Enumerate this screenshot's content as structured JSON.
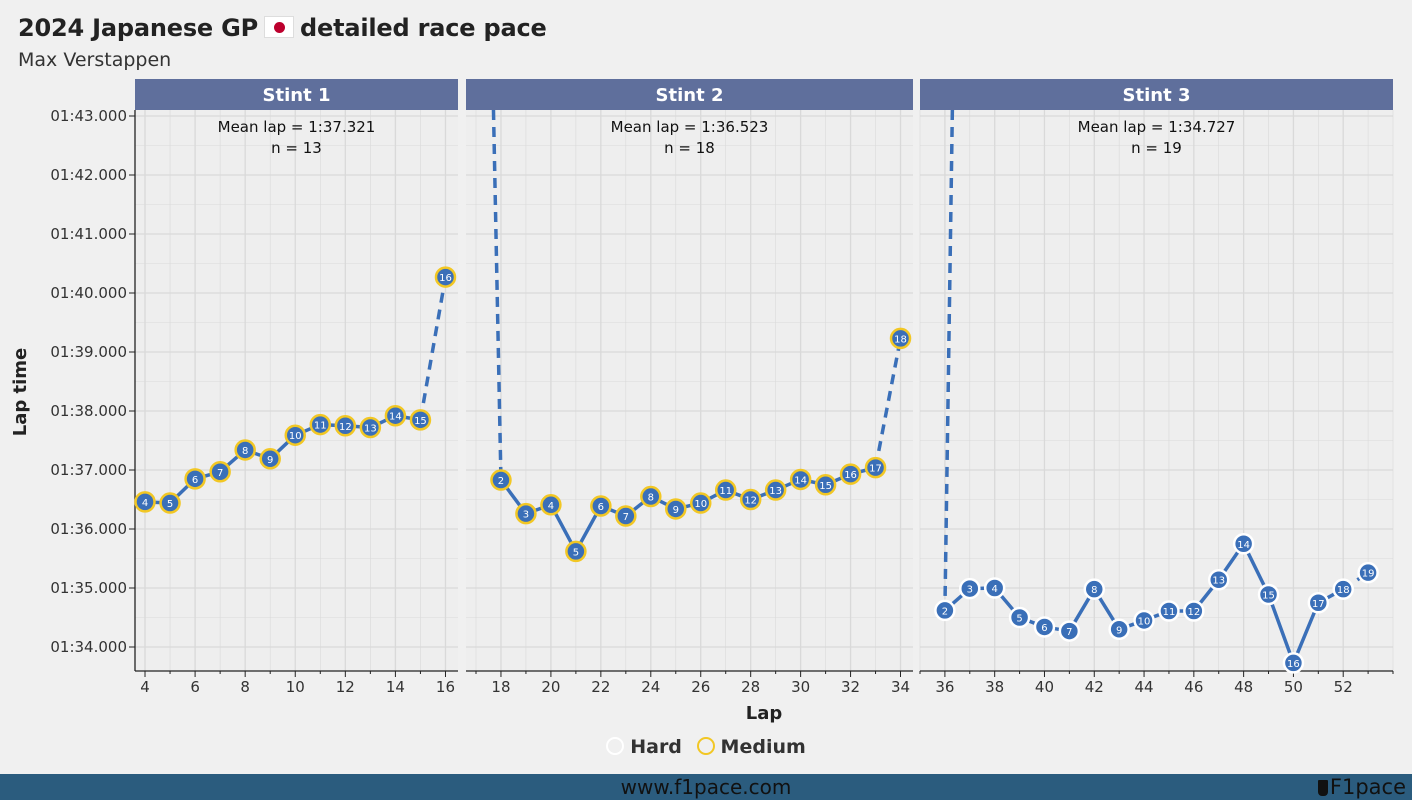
{
  "header": {
    "title_main": "2024 Japanese GP",
    "title_rest": "detailed race pace",
    "subtitle": "Max Verstappen"
  },
  "colors": {
    "line": "#3a6fb8",
    "marker_fill": "#3a6fb8",
    "hard": "#ffffff",
    "medium": "#f2c724",
    "strip": "#5f6f9c",
    "panel_bg": "#eeeeee",
    "grid": "#d9d9d9",
    "footer": "#2b5c7e",
    "flag_red": "#bc002d"
  },
  "legend": {
    "items": [
      {
        "label": "Hard",
        "color": "#ffffff"
      },
      {
        "label": "Medium",
        "color": "#f2c724"
      }
    ]
  },
  "footer": {
    "url": "www.f1pace.com",
    "brand": "F1pace"
  },
  "chart_data": {
    "type": "line",
    "xlabel": "Lap",
    "ylabel": "Lap time",
    "ylim": [
      93.7,
      103.0
    ],
    "yticks": [
      94,
      95,
      96,
      97,
      98,
      99,
      100,
      101,
      102,
      103
    ],
    "ytick_labels": [
      "01:34.000",
      "01:35.000",
      "01:36.000",
      "01:37.000",
      "01:38.000",
      "01:39.000",
      "01:40.000",
      "01:41.000",
      "01:42.000",
      "01:43.000"
    ],
    "grid": true,
    "legend_position": "bottom",
    "panels": [
      {
        "name": "Stint 1",
        "mean_label": "Mean lap = 1:37.321",
        "n_label": "n = 13",
        "xlim": [
          3.6,
          16.5
        ],
        "xticks": [
          4,
          6,
          8,
          10,
          12,
          14,
          16
        ],
        "compound": "Medium",
        "pre_lap": null,
        "points": [
          {
            "lap": 4,
            "stint_lap": 4,
            "time": 96.46
          },
          {
            "lap": 5,
            "stint_lap": 5,
            "time": 96.44
          },
          {
            "lap": 6,
            "stint_lap": 6,
            "time": 96.85
          },
          {
            "lap": 7,
            "stint_lap": 7,
            "time": 96.97
          },
          {
            "lap": 8,
            "stint_lap": 8,
            "time": 97.34
          },
          {
            "lap": 9,
            "stint_lap": 9,
            "time": 97.19
          },
          {
            "lap": 10,
            "stint_lap": 10,
            "time": 97.59
          },
          {
            "lap": 11,
            "stint_lap": 11,
            "time": 97.77
          },
          {
            "lap": 12,
            "stint_lap": 12,
            "time": 97.75
          },
          {
            "lap": 13,
            "stint_lap": 13,
            "time": 97.72
          },
          {
            "lap": 14,
            "stint_lap": 14,
            "time": 97.92
          },
          {
            "lap": 15,
            "stint_lap": 15,
            "time": 97.85
          },
          {
            "lap": 16,
            "stint_lap": 16,
            "time": 100.27
          }
        ]
      },
      {
        "name": "Stint 2",
        "mean_label": "Mean lap = 1:36.523",
        "n_label": "n = 18",
        "xlim": [
          16.6,
          34.5
        ],
        "xticks": [
          18,
          20,
          22,
          24,
          26,
          28,
          30,
          32,
          34
        ],
        "compound": "Medium",
        "pre_lap": 17.7,
        "points": [
          {
            "lap": 18,
            "stint_lap": 2,
            "time": 96.83
          },
          {
            "lap": 19,
            "stint_lap": 3,
            "time": 96.26
          },
          {
            "lap": 20,
            "stint_lap": 4,
            "time": 96.41
          },
          {
            "lap": 21,
            "stint_lap": 5,
            "time": 95.62
          },
          {
            "lap": 22,
            "stint_lap": 6,
            "time": 96.39
          },
          {
            "lap": 23,
            "stint_lap": 7,
            "time": 96.22
          },
          {
            "lap": 24,
            "stint_lap": 8,
            "time": 96.55
          },
          {
            "lap": 25,
            "stint_lap": 9,
            "time": 96.34
          },
          {
            "lap": 26,
            "stint_lap": 10,
            "time": 96.44
          },
          {
            "lap": 27,
            "stint_lap": 11,
            "time": 96.66
          },
          {
            "lap": 28,
            "stint_lap": 12,
            "time": 96.5
          },
          {
            "lap": 29,
            "stint_lap": 13,
            "time": 96.66
          },
          {
            "lap": 30,
            "stint_lap": 14,
            "time": 96.84
          },
          {
            "lap": 31,
            "stint_lap": 15,
            "time": 96.75
          },
          {
            "lap": 32,
            "stint_lap": 16,
            "time": 96.93
          },
          {
            "lap": 33,
            "stint_lap": 17,
            "time": 97.04
          },
          {
            "lap": 34,
            "stint_lap": 18,
            "time": 99.23
          }
        ]
      },
      {
        "name": "Stint 3",
        "mean_label": "Mean lap = 1:34.727",
        "n_label": "n = 19",
        "xlim": [
          35.0,
          54.0
        ],
        "xticks": [
          36,
          38,
          40,
          42,
          44,
          46,
          48,
          50,
          52
        ],
        "compound": "Hard",
        "pre_lap": 36.3,
        "points": [
          {
            "lap": 36,
            "stint_lap": 2,
            "time": 94.62
          },
          {
            "lap": 37,
            "stint_lap": 3,
            "time": 94.99
          },
          {
            "lap": 38,
            "stint_lap": 4,
            "time": 95.0
          },
          {
            "lap": 39,
            "stint_lap": 5,
            "time": 94.5
          },
          {
            "lap": 40,
            "stint_lap": 6,
            "time": 94.34
          },
          {
            "lap": 41,
            "stint_lap": 7,
            "time": 94.27
          },
          {
            "lap": 42,
            "stint_lap": 8,
            "time": 94.98
          },
          {
            "lap": 43,
            "stint_lap": 9,
            "time": 94.3
          },
          {
            "lap": 44,
            "stint_lap": 10,
            "time": 94.45
          },
          {
            "lap": 45,
            "stint_lap": 11,
            "time": 94.61
          },
          {
            "lap": 46,
            "stint_lap": 12,
            "time": 94.61
          },
          {
            "lap": 47,
            "stint_lap": 13,
            "time": 95.14
          },
          {
            "lap": 48,
            "stint_lap": 14,
            "time": 95.75
          },
          {
            "lap": 49,
            "stint_lap": 15,
            "time": 94.89
          },
          {
            "lap": 50,
            "stint_lap": 16,
            "time": 93.73
          },
          {
            "lap": 51,
            "stint_lap": 17,
            "time": 94.75
          },
          {
            "lap": 52,
            "stint_lap": 18,
            "time": 94.98
          },
          {
            "lap": 53,
            "stint_lap": 19,
            "time": 95.26
          }
        ]
      }
    ]
  }
}
